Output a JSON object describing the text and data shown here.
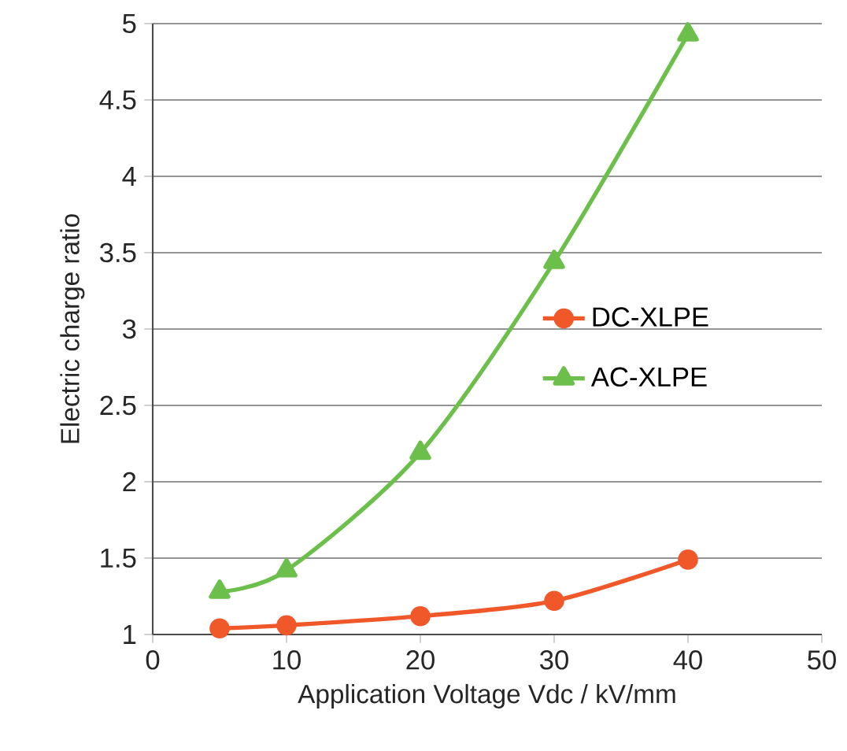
{
  "chart_data": {
    "type": "line",
    "xlabel": "Application Voltage Vdc / kV/mm",
    "ylabel": "Electric charge ratio",
    "xlim": [
      0,
      50
    ],
    "xticks": [
      0,
      10,
      20,
      30,
      40,
      50
    ],
    "ylim": [
      1,
      5
    ],
    "yticks": [
      1,
      1.5,
      2,
      2.5,
      3,
      3.5,
      4,
      4.5,
      5
    ],
    "grid": "y",
    "legend": "right",
    "line_style": "solid",
    "x": [
      5,
      10,
      20,
      30,
      40
    ],
    "series": [
      {
        "name": "DC-XLPE",
        "color": "#f0582a",
        "marker": "circle",
        "values": [
          1.04,
          1.06,
          1.12,
          1.22,
          1.49
        ]
      },
      {
        "name": "AC-XLPE",
        "color": "#6cbf4a",
        "marker": "triangle",
        "values": [
          1.28,
          1.42,
          2.19,
          3.44,
          4.93
        ]
      }
    ]
  }
}
